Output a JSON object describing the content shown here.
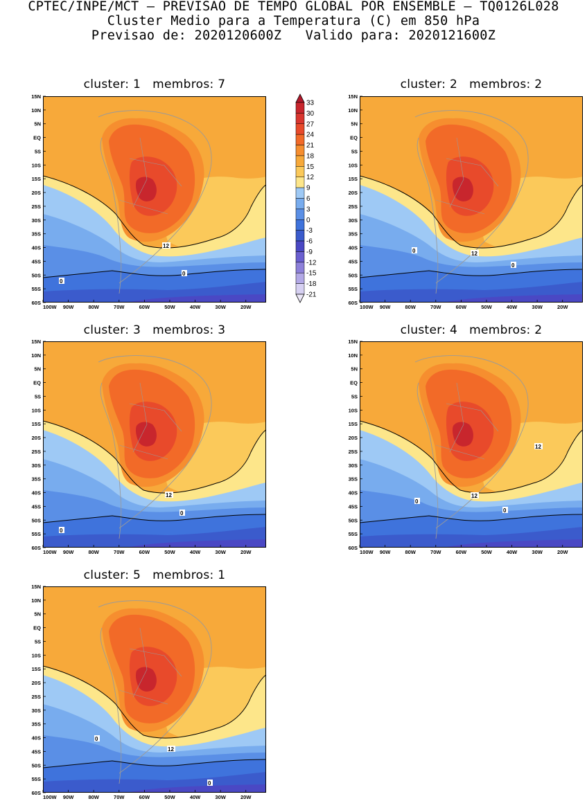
{
  "header": {
    "line1": "CPTEC/INPE/MCT — PREVISAO DE TEMPO GLOBAL POR ENSEMBLE — TQ0126L028",
    "line2": "Cluster Medio para a Temperatura (C) em 850 hPa",
    "line3": "Previsao de: 2020120600Z   Valido para: 2020121600Z"
  },
  "axes": {
    "lat_labels": [
      "15N",
      "10N",
      "5N",
      "EQ",
      "5S",
      "10S",
      "15S",
      "20S",
      "25S",
      "30S",
      "35S",
      "40S",
      "45S",
      "50S",
      "55S",
      "60S"
    ],
    "lon_labels": [
      "100W",
      "90W",
      "80W",
      "70W",
      "60W",
      "50W",
      "40W",
      "30W",
      "20W"
    ]
  },
  "colorbar": {
    "labels": [
      "33",
      "30",
      "27",
      "24",
      "21",
      "18",
      "15",
      "12",
      "9",
      "6",
      "3",
      "0",
      "-3",
      "-6",
      "-9",
      "-12",
      "-15",
      "-18",
      "-21"
    ],
    "colors": [
      "#b2182b",
      "#c8262d",
      "#d9362f",
      "#e84a2b",
      "#f26a28",
      "#f68e2f",
      "#f7a93a",
      "#fbc95a",
      "#fde68a",
      "#9ec9f5",
      "#78acee",
      "#5a8fe6",
      "#3f73dc",
      "#3b5bcc",
      "#4a48c4",
      "#6a5fd0",
      "#8d80da",
      "#b2a8e6",
      "#d6d0f2"
    ]
  },
  "palette": {
    "t18_21": "#f68e2f",
    "t15_18": "#f7a93a",
    "t12_15": "#fbc95a",
    "t9_12": "#fde68a",
    "t6_9": "#9ec9f5",
    "t3_6": "#78acee",
    "t0_3": "#5a8fe6",
    "tm3_0": "#3f73dc",
    "tm6_m3": "#3b5bcc",
    "tm9_m6": "#4a48c4",
    "t21_24": "#f26a28",
    "t24_27": "#e84a2b",
    "t27_30": "#c8262d"
  },
  "panels": [
    {
      "title": "cluster: 1   membros: 7",
      "contour_labels": [
        "12",
        "0",
        "0"
      ]
    },
    {
      "title": "cluster: 2   membros: 2",
      "contour_labels": [
        "12",
        "0",
        "0"
      ]
    },
    {
      "title": "cluster: 3   membros: 3",
      "contour_labels": [
        "12",
        "0",
        "0"
      ]
    },
    {
      "title": "cluster: 4   membros: 2",
      "contour_labels": [
        "12",
        "12",
        "0",
        "0"
      ]
    },
    {
      "title": "cluster: 5   membros: 1",
      "contour_labels": [
        "12",
        "0",
        "0"
      ]
    }
  ]
}
